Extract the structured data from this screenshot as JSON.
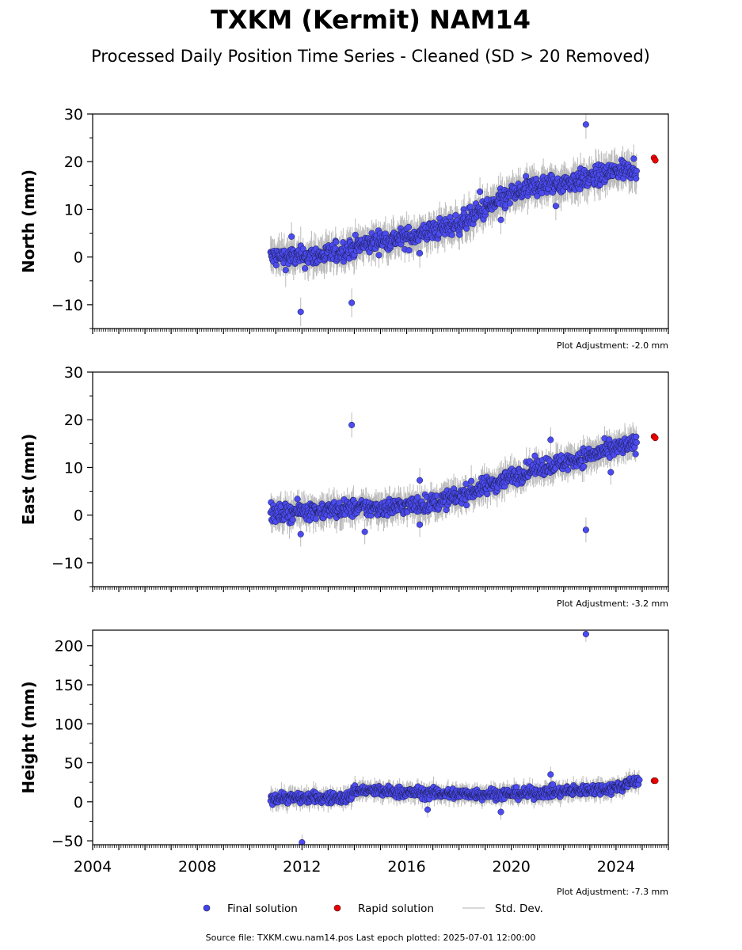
{
  "chart_data": {
    "type": "scatter",
    "title": "TXKM (Kermit) NAM14",
    "subtitle": "Processed Daily Position Time Series - Cleaned (SD > 20 Removed)",
    "xlabel": "",
    "x_ticks": [
      "2004",
      "2008",
      "2012",
      "2016",
      "2020",
      "2024"
    ],
    "xlim": [
      2004,
      2026
    ],
    "grid": false,
    "legend_position": "bottom-center",
    "legend": [
      {
        "label": "Final solution",
        "color": "#4444ee"
      },
      {
        "label": "Rapid solution",
        "color": "#ee0000"
      },
      {
        "label": "Std. Dev.",
        "color": "#cccccc"
      }
    ],
    "footer": "Source file: TXKM.cwu.nam14.pos  Last epoch plotted: 2025-07-01 12:00:00",
    "panels": [
      {
        "ylabel": "North (mm)",
        "ylim": [
          -15,
          30
        ],
        "y_ticks": [
          -10,
          0,
          10,
          20,
          30
        ],
        "y_tick_labels": [
          "−10",
          "0",
          "10",
          "20",
          "30"
        ],
        "adjustment": "Plot Adjustment: -2.0 mm",
        "trend": [
          [
            2010.8,
            0
          ],
          [
            2012.0,
            0
          ],
          [
            2013.0,
            0.5
          ],
          [
            2014.0,
            2
          ],
          [
            2015.0,
            3.5
          ],
          [
            2016.0,
            4
          ],
          [
            2017.0,
            5.5
          ],
          [
            2018.0,
            7
          ],
          [
            2019.0,
            10
          ],
          [
            2020.0,
            13
          ],
          [
            2021.0,
            15
          ],
          [
            2022.0,
            15.5
          ],
          [
            2023.0,
            16.5
          ],
          [
            2024.0,
            18
          ],
          [
            2024.8,
            19
          ]
        ],
        "scatter": 1.5,
        "outliers": [
          [
            2011.95,
            -11.5
          ],
          [
            2013.9,
            -9.6
          ],
          [
            2011.6,
            4.3
          ],
          [
            2022.85,
            27.8
          ],
          [
            2021.7,
            10.7
          ],
          [
            2019.6,
            7.8
          ],
          [
            2016.5,
            0.8
          ],
          [
            2018.8,
            13.7
          ]
        ],
        "rapid": [
          [
            2025.45,
            20.8
          ],
          [
            2025.5,
            20.3
          ]
        ]
      },
      {
        "ylabel": "East (mm)",
        "ylim": [
          -15,
          30
        ],
        "y_ticks": [
          -10,
          0,
          10,
          20,
          30
        ],
        "y_tick_labels": [
          "−10",
          "0",
          "10",
          "20",
          "30"
        ],
        "adjustment": "Plot Adjustment: -3.2 mm",
        "trend": [
          [
            2010.8,
            0
          ],
          [
            2012.0,
            1
          ],
          [
            2013.0,
            1
          ],
          [
            2014.0,
            1.5
          ],
          [
            2015.0,
            1.5
          ],
          [
            2016.0,
            2
          ],
          [
            2017.0,
            2.5
          ],
          [
            2018.0,
            4
          ],
          [
            2019.0,
            6
          ],
          [
            2020.0,
            8
          ],
          [
            2021.0,
            10
          ],
          [
            2022.0,
            11
          ],
          [
            2023.0,
            12.5
          ],
          [
            2024.0,
            14
          ],
          [
            2024.8,
            15
          ]
        ],
        "scatter": 1.3,
        "outliers": [
          [
            2013.9,
            18.9
          ],
          [
            2011.95,
            -4.0
          ],
          [
            2014.4,
            -3.5
          ],
          [
            2022.85,
            -3.1
          ],
          [
            2016.5,
            7.3
          ],
          [
            2021.5,
            15.8
          ],
          [
            2016.5,
            -2.0
          ],
          [
            2023.8,
            9.0
          ]
        ],
        "rapid": [
          [
            2025.45,
            16.5
          ],
          [
            2025.5,
            16.2
          ]
        ]
      },
      {
        "ylabel": "Height (mm)",
        "ylim": [
          -55,
          220
        ],
        "y_ticks": [
          -50,
          0,
          50,
          100,
          150,
          200
        ],
        "y_tick_labels": [
          "−50",
          "0",
          "50",
          "100",
          "150",
          "200"
        ],
        "adjustment": "Plot Adjustment: -7.3 mm",
        "trend": [
          [
            2010.8,
            5
          ],
          [
            2013.8,
            5
          ],
          [
            2014.0,
            15
          ],
          [
            2016.0,
            12
          ],
          [
            2018.0,
            10
          ],
          [
            2020.0,
            10
          ],
          [
            2022.0,
            13
          ],
          [
            2024.0,
            18
          ],
          [
            2024.6,
            25
          ],
          [
            2024.9,
            28
          ]
        ],
        "scatter": 5,
        "outliers": [
          [
            2022.85,
            215
          ],
          [
            2012.0,
            -52
          ],
          [
            2019.6,
            -13
          ],
          [
            2021.5,
            35
          ],
          [
            2016.8,
            -10
          ]
        ],
        "rapid": [
          [
            2025.45,
            27
          ],
          [
            2025.5,
            27
          ]
        ]
      }
    ]
  }
}
